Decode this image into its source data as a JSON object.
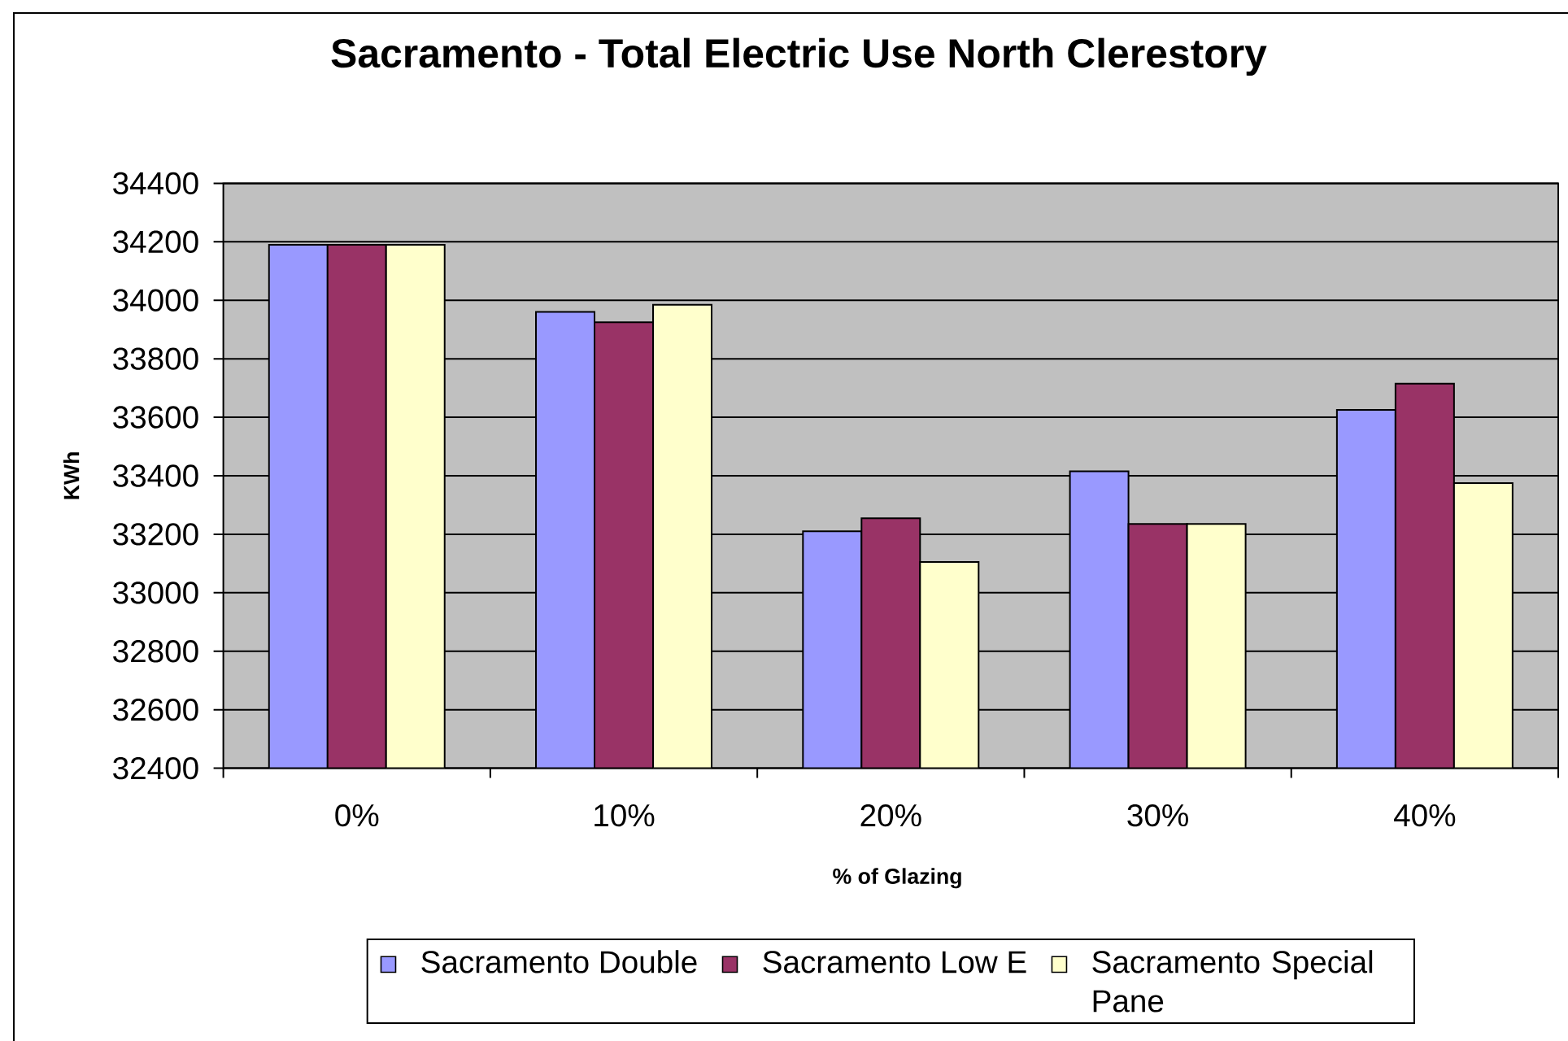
{
  "chart_data": {
    "type": "bar",
    "title": "Sacramento - Total Electric Use North Clerestory",
    "xlabel": "% of Glazing",
    "ylabel": "KWh",
    "categories": [
      "0%",
      "10%",
      "20%",
      "30%",
      "40%"
    ],
    "series": [
      {
        "name": "Sacramento Double",
        "color": "#9999ff",
        "values": [
          34190,
          33960,
          33210,
          33415,
          33625
        ]
      },
      {
        "name": "Sacramento Low E",
        "color": "#993366",
        "values": [
          34190,
          33925,
          33255,
          33235,
          33715
        ]
      },
      {
        "name": "Sacramento Special Pane",
        "color": "#ffffcc",
        "values": [
          34190,
          33985,
          33105,
          33235,
          33375
        ]
      }
    ],
    "ylim": [
      32400,
      34400
    ],
    "yticks": [
      32400,
      32600,
      32800,
      33000,
      33200,
      33400,
      33600,
      33800,
      34000,
      34200,
      34400
    ],
    "grid": "y",
    "legend": "bottom"
  }
}
